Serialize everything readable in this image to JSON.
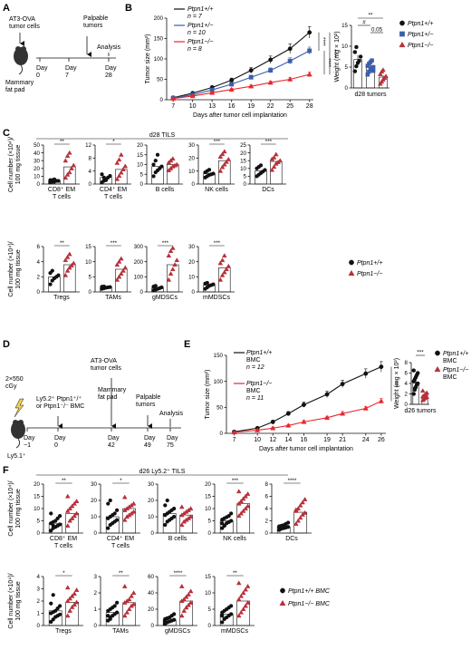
{
  "panel_labels": {
    "A": "A",
    "B": "B",
    "C": "C",
    "D": "D",
    "E": "E",
    "F": "F"
  },
  "colors": {
    "wt": "#111111",
    "het": "#3b5eab",
    "ko": "#e8262b",
    "ko_fill": "#b7313a"
  },
  "panel_A": {
    "cells_label": "AT3-OVA\ntumor cells",
    "site_label": "Mammary\nfat pad",
    "palpable_label": "Palpable\ntumors",
    "analysis_label": "Analysis",
    "days": [
      {
        "label": "Day\n0",
        "day": 0
      },
      {
        "label": "Day\n7",
        "day": 7
      },
      {
        "label": "Day\n28",
        "day": 28
      }
    ]
  },
  "chart_data": [
    {
      "panel": "B-left",
      "type": "line",
      "xlabel": "Days after tumor cell implantation",
      "ylabel": "Tumor size (mm²)",
      "x": [
        7,
        10,
        13,
        16,
        19,
        22,
        25,
        28
      ],
      "ylim": [
        0,
        200
      ],
      "yticks": [
        0,
        50,
        100,
        150,
        200
      ],
      "series": [
        {
          "name": "Ptpn1+/+",
          "n_label": "n = 7",
          "color": "#111111",
          "marker": "circle",
          "values": [
            5,
            16,
            30,
            48,
            72,
            98,
            125,
            165
          ],
          "err": [
            1,
            3,
            4,
            5,
            7,
            9,
            12,
            14
          ]
        },
        {
          "name": "Ptpn1+/−",
          "n_label": "n = 10",
          "color": "#3b5eab",
          "marker": "square",
          "values": [
            4,
            12,
            24,
            38,
            55,
            72,
            95,
            120
          ],
          "err": [
            1,
            2,
            3,
            4,
            5,
            6,
            8,
            9
          ]
        },
        {
          "name": "Ptpn1−/−",
          "n_label": "n = 8",
          "color": "#e8262b",
          "marker": "triangle",
          "values": [
            3,
            9,
            17,
            25,
            33,
            42,
            50,
            62
          ],
          "err": [
            1,
            2,
            2,
            3,
            3,
            4,
            5,
            6
          ]
        }
      ],
      "significance": [
        "****",
        "****",
        "****"
      ]
    },
    {
      "panel": "B-right",
      "type": "scatter",
      "ylabel": "Weight (mg × 10²)",
      "xlabel": "d28 tumors",
      "ylim": [
        0,
        15
      ],
      "yticks": [
        0,
        5,
        10,
        15
      ],
      "groups": [
        {
          "name": "Ptpn1+/+",
          "marker": "circle",
          "mean": 6.8,
          "err": 1.1,
          "points": [
            4.0,
            5.2,
            6.0,
            6.5,
            7.5,
            8.6,
            9.8
          ]
        },
        {
          "name": "Ptpn1+/−",
          "marker": "square",
          "mean": 5.0,
          "err": 0.6,
          "points": [
            3.2,
            3.9,
            4.4,
            4.8,
            5.0,
            5.3,
            5.8,
            6.2,
            6.6,
            4.1
          ]
        },
        {
          "name": "Ptpn1−/−",
          "marker": "triangle",
          "mean": 2.6,
          "err": 0.5,
          "points": [
            1.0,
            1.5,
            2.0,
            2.4,
            2.8,
            3.3,
            3.9,
            4.3
          ]
        }
      ],
      "brackets": [
        {
          "from": 0,
          "to": 2,
          "label": "**"
        },
        {
          "from": 0,
          "to": 1,
          "label": "#"
        },
        {
          "from": 1,
          "to": 2,
          "label": "0.05"
        }
      ]
    },
    {
      "panel": "C",
      "type": "scatter",
      "header": "d28 TILS",
      "ylabel_top": "Cell number (×10⁴)/\n100 mg tissue",
      "ylabel_bottom": "Cell number (×10⁴)/\n100 mg tissue",
      "legend": [
        "Ptpn1+/+",
        "Ptpn1−/−"
      ],
      "subplots": [
        {
          "name": "CD8⁺ EM\nT cells",
          "ylim": [
            0,
            50
          ],
          "yticks": [
            0,
            10,
            20,
            30,
            40,
            50
          ],
          "sig": "**",
          "wt": [
            2,
            3,
            3,
            4,
            4,
            5,
            5,
            6
          ],
          "ko": [
            8,
            12,
            15,
            20,
            24,
            30,
            36,
            40
          ],
          "wt_mean": 4,
          "ko_mean": 22
        },
        {
          "name": "CD4⁺ EM\nT cells",
          "ylim": [
            0,
            12
          ],
          "yticks": [
            0,
            4,
            8,
            12
          ],
          "sig": "*",
          "wt": [
            0.5,
            1,
            1.5,
            2,
            2.5,
            3,
            2,
            1.2
          ],
          "ko": [
            1.5,
            2.5,
            3.5,
            4.5,
            5.5,
            6.5,
            7.5,
            9.0
          ],
          "wt_mean": 2,
          "ko_mean": 4.5
        },
        {
          "name": "B cells",
          "ylim": [
            0,
            20
          ],
          "yticks": [
            0,
            5,
            10,
            15,
            20
          ],
          "sig": "",
          "wt": [
            4,
            6,
            7,
            8,
            9,
            10,
            12,
            15
          ],
          "ko": [
            7,
            8,
            9,
            9.5,
            10,
            11,
            12,
            13
          ],
          "wt_mean": 9,
          "ko_mean": 10
        },
        {
          "name": "NK cells",
          "ylim": [
            0,
            30
          ],
          "yticks": [
            0,
            10,
            20,
            30
          ],
          "sig": "***",
          "wt": [
            5,
            6,
            7,
            7.5,
            8,
            9,
            10,
            11
          ],
          "ko": [
            10,
            13,
            15,
            17,
            19,
            21,
            23,
            25
          ],
          "wt_mean": 8,
          "ko_mean": 18
        },
        {
          "name": "DCs",
          "ylim": [
            0,
            25
          ],
          "yticks": [
            0,
            5,
            10,
            15,
            20,
            25
          ],
          "sig": "***",
          "wt": [
            5,
            6,
            7,
            8,
            9,
            10,
            11,
            12
          ],
          "ko": [
            9,
            11,
            13,
            14,
            15,
            16,
            17,
            19
          ],
          "wt_mean": 8.5,
          "ko_mean": 14.5
        },
        {
          "name": "Tregs",
          "ylim": [
            0,
            6
          ],
          "yticks": [
            0,
            2,
            4,
            6
          ],
          "sig": "**",
          "wt": [
            1.0,
            1.5,
            1.8,
            2.0,
            2.2,
            2.5,
            2.8
          ],
          "ko": [
            2.2,
            2.8,
            3.2,
            3.5,
            3.8,
            4.2,
            4.6,
            5.0
          ],
          "wt_mean": 2.0,
          "ko_mean": 3.6
        },
        {
          "name": "TAMs",
          "ylim": [
            0,
            15
          ],
          "yticks": [
            0,
            5,
            10,
            15
          ],
          "sig": "***",
          "wt": [
            1.0,
            1.2,
            1.4,
            1.5,
            1.6,
            1.7,
            1.8
          ],
          "ko": [
            4,
            5,
            6,
            7,
            8,
            9,
            10,
            11
          ],
          "wt_mean": 1.5,
          "ko_mean": 7.5
        },
        {
          "name": "gMDSCs",
          "ylim": [
            0,
            300
          ],
          "yticks": [
            0,
            100,
            200,
            300
          ],
          "sig": "***",
          "wt": [
            10,
            15,
            20,
            25,
            30,
            35,
            40
          ],
          "ko": [
            80,
            120,
            150,
            180,
            210,
            240,
            270,
            290
          ],
          "wt_mean": 25,
          "ko_mean": 180
        },
        {
          "name": "mMDSCs",
          "ylim": [
            0,
            30
          ],
          "yticks": [
            0,
            10,
            20,
            30
          ],
          "sig": "***",
          "wt": [
            2,
            3,
            4,
            4.5,
            5,
            5.5,
            6
          ],
          "ko": [
            8,
            11,
            13,
            15,
            17,
            19,
            21,
            24
          ],
          "wt_mean": 4.5,
          "ko_mean": 16
        }
      ]
    },
    {
      "panel": "E-left",
      "type": "line",
      "xlabel": "Days after tumor cell implantation",
      "ylabel": "Tumor size (mm²)",
      "x": [
        7,
        10,
        12,
        14,
        16,
        19,
        21,
        24,
        26
      ],
      "ylim": [
        0,
        150
      ],
      "yticks": [
        0,
        50,
        100,
        150
      ],
      "series": [
        {
          "name": "Ptpn1+/+ BMC",
          "n_label": "n = 12",
          "color": "#111111",
          "marker": "circle",
          "values": [
            3,
            10,
            22,
            38,
            55,
            75,
            95,
            115,
            128
          ],
          "err": [
            1,
            2,
            3,
            4,
            5,
            6,
            7,
            9,
            10
          ]
        },
        {
          "name": "Ptpn1−/− BMC",
          "n_label": "n = 11",
          "color": "#e8262b",
          "marker": "triangle",
          "values": [
            2,
            6,
            10,
            15,
            22,
            30,
            38,
            48,
            62
          ],
          "err": [
            1,
            1,
            2,
            2,
            3,
            3,
            4,
            4,
            5
          ]
        }
      ],
      "significance": [
        "***"
      ]
    },
    {
      "panel": "E-right",
      "type": "scatter",
      "ylabel": "Weight (mg × 10²)",
      "xlabel": "d26 tumors",
      "ylim": [
        0,
        8
      ],
      "yticks": [
        0,
        2,
        4,
        6,
        8
      ],
      "groups": [
        {
          "name": "Ptpn1+/+ BMC",
          "marker": "circle",
          "mean": 4.3,
          "err": 0.5,
          "points": [
            2.0,
            2.8,
            3.3,
            3.8,
            4.0,
            4.4,
            4.8,
            5.2,
            5.6,
            6.0,
            6.5,
            3.0
          ]
        },
        {
          "name": "Ptpn1−/− BMC",
          "marker": "triangle",
          "mean": 1.5,
          "err": 0.2,
          "points": [
            0.8,
            1.0,
            1.2,
            1.3,
            1.4,
            1.5,
            1.6,
            1.8,
            2.0,
            2.2,
            2.6
          ]
        }
      ],
      "brackets": [
        {
          "from": 0,
          "to": 1,
          "label": "***"
        }
      ]
    },
    {
      "panel": "F",
      "type": "scatter",
      "header": "d26 Ly5.2⁺ TILS",
      "ylabel_top": "Cell number (×10⁴)/\n100 mg tissue",
      "ylabel_bottom": "Cell number (×10⁴)/\n100 mg tissue",
      "legend": [
        "Ptpn1+/+ BMC",
        "Ptpn1−/− BMC"
      ],
      "subplots": [
        {
          "name": "CD8⁺ EM\nT cells",
          "ylim": [
            0,
            20
          ],
          "yticks": [
            0,
            5,
            10,
            15,
            20
          ],
          "sig": "**",
          "wt": [
            1,
            2,
            2.5,
            3,
            3.5,
            4,
            4.5,
            5,
            6,
            7,
            8,
            3
          ],
          "ko": [
            3,
            5,
            6,
            7,
            8,
            9,
            10,
            11,
            12,
            13,
            15
          ],
          "wt_mean": 4,
          "ko_mean": 8
        },
        {
          "name": "CD4⁺ EM\nT cells",
          "ylim": [
            0,
            30
          ],
          "yticks": [
            0,
            10,
            20,
            30
          ],
          "sig": "*",
          "wt": [
            3,
            5,
            6,
            7,
            8,
            9,
            10,
            11,
            12,
            14,
            18,
            20
          ],
          "ko": [
            8,
            10,
            11,
            12,
            13,
            14,
            15,
            16,
            17,
            18,
            22
          ],
          "wt_mean": 10,
          "ko_mean": 15
        },
        {
          "name": "B cells",
          "ylim": [
            0,
            30
          ],
          "yticks": [
            0,
            10,
            20,
            30
          ],
          "sig": "",
          "wt": [
            5,
            7,
            8,
            9,
            10,
            11,
            12,
            13,
            14,
            15,
            17,
            20
          ],
          "ko": [
            5,
            7,
            8,
            9,
            10,
            11,
            12,
            13,
            14,
            15,
            16
          ],
          "wt_mean": 12,
          "ko_mean": 11
        },
        {
          "name": "NK cells",
          "ylim": [
            0,
            20
          ],
          "yticks": [
            0,
            5,
            10,
            15,
            20
          ],
          "sig": "***",
          "wt": [
            2,
            3,
            4,
            4.5,
            5,
            5.5,
            6,
            6.5,
            7,
            8,
            4,
            3
          ],
          "ko": [
            7,
            8,
            9,
            10,
            11,
            12,
            13,
            14,
            15,
            16,
            17
          ],
          "wt_mean": 5,
          "ko_mean": 12
        },
        {
          "name": "DCs",
          "ylim": [
            0,
            8
          ],
          "yticks": [
            0,
            2,
            4,
            6,
            8
          ],
          "sig": "****",
          "wt": [
            0.5,
            0.7,
            0.8,
            0.9,
            1.0,
            1.1,
            1.2,
            1.3,
            1.5,
            1.7,
            1.0,
            0.8
          ],
          "ko": [
            1.5,
            2,
            2.5,
            3,
            3.3,
            3.6,
            4,
            4.5,
            5,
            5.5,
            3.8
          ],
          "wt_mean": 1.0,
          "ko_mean": 3.4
        },
        {
          "name": "Tregs",
          "ylim": [
            0,
            4
          ],
          "yticks": [
            0,
            1,
            2,
            3,
            4
          ],
          "sig": "*",
          "wt": [
            0.3,
            0.5,
            0.7,
            0.8,
            0.9,
            1.0,
            1.1,
            1.2,
            1.4,
            1.6,
            1.8,
            2.5
          ],
          "ko": [
            0.8,
            1.2,
            1.5,
            1.7,
            1.9,
            2.0,
            2.2,
            2.4,
            2.6,
            2.9,
            3.1
          ],
          "wt_mean": 1.2,
          "ko_mean": 1.9
        },
        {
          "name": "TAMs",
          "ylim": [
            0,
            3
          ],
          "yticks": [
            0,
            1,
            2,
            3
          ],
          "sig": "**",
          "wt": [
            0.3,
            0.5,
            0.6,
            0.7,
            0.8,
            0.9,
            1.0,
            1.1,
            1.2,
            1.4,
            0.6,
            0.4
          ],
          "ko": [
            0.6,
            0.8,
            1.0,
            1.2,
            1.3,
            1.4,
            1.5,
            1.6,
            1.8,
            2.0,
            2.4
          ],
          "wt_mean": 0.8,
          "ko_mean": 1.4
        },
        {
          "name": "gMDSCs",
          "ylim": [
            0,
            60
          ],
          "yticks": [
            0,
            20,
            40,
            60
          ],
          "sig": "****",
          "wt": [
            2,
            4,
            5,
            6,
            7,
            8,
            9,
            10,
            12,
            14,
            5,
            4
          ],
          "ko": [
            12,
            18,
            22,
            25,
            28,
            30,
            32,
            35,
            38,
            42,
            48
          ],
          "wt_mean": 7,
          "ko_mean": 30
        },
        {
          "name": "mMDSCs",
          "ylim": [
            0,
            15
          ],
          "yticks": [
            0,
            5,
            10,
            15
          ],
          "sig": "**",
          "wt": [
            1,
            2,
            2.5,
            3,
            3.5,
            4,
            4.5,
            5,
            5.5,
            6,
            3,
            2
          ],
          "ko": [
            3,
            4,
            5,
            6,
            7,
            8,
            9,
            10,
            11,
            12,
            13
          ],
          "wt_mean": 3.5,
          "ko_mean": 7.5
        }
      ]
    }
  ],
  "panel_D": {
    "irradiation_label": "2×550\ncGy",
    "host_label": "Ly5.1⁺",
    "transfer_label": "Ly5.2⁺ Ptpn1⁺/⁺\nor Ptpn1⁻/⁻ BMC",
    "cells_label": "AT3-OVA\ntumor cells",
    "site_label": "Mammary\nfat pad",
    "palpable_label": "Palpable\ntumors",
    "analysis_label": "Analysis",
    "days": [
      {
        "label": "Day\n−1",
        "day": -1
      },
      {
        "label": "Day\n0",
        "day": 0
      },
      {
        "label": "Day\n42",
        "day": 42
      },
      {
        "label": "Day\n49",
        "day": 49
      },
      {
        "label": "Day\n75",
        "day": 75
      }
    ]
  }
}
